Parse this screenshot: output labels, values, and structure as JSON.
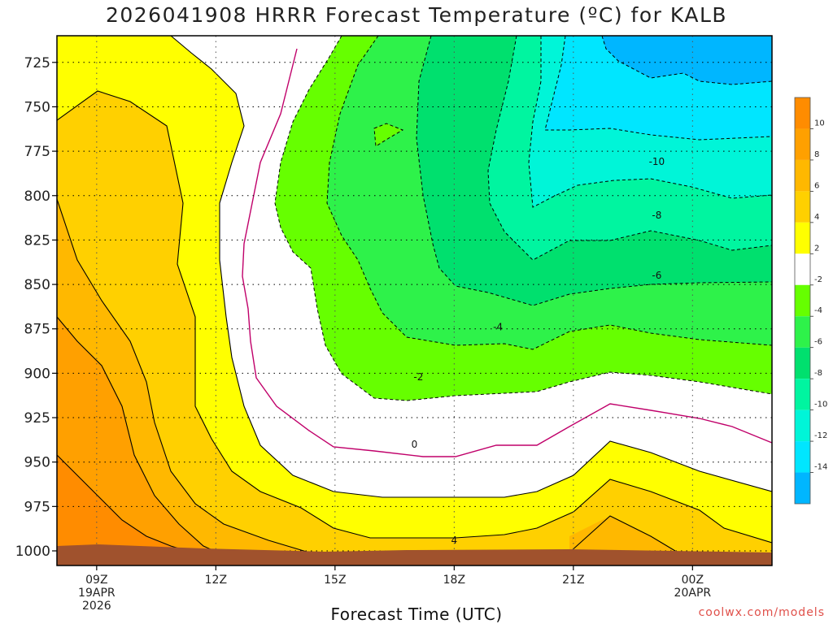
{
  "chart_data": {
    "type": "heatmap",
    "title": "2026041908 HRRR Forecast Temperature (ºC) for KALB",
    "xlabel": "Forecast Time (UTC)",
    "ylabel": "",
    "y_ticks": [
      725,
      750,
      775,
      800,
      825,
      850,
      875,
      900,
      925,
      950,
      975,
      1000
    ],
    "ylim": [
      1000,
      710
    ],
    "x_ticks": [
      {
        "hour": 9,
        "label": "09Z",
        "sub": [
          "19APR",
          "2026"
        ]
      },
      {
        "hour": 12,
        "label": "12Z",
        "sub": []
      },
      {
        "hour": 15,
        "label": "15Z",
        "sub": []
      },
      {
        "hour": 18,
        "label": "18Z",
        "sub": []
      },
      {
        "hour": 21,
        "label": "21Z",
        "sub": []
      },
      {
        "hour": 24,
        "label": "00Z",
        "sub": [
          "20APR"
        ]
      }
    ],
    "xlim": [
      8,
      26
    ],
    "grid": true,
    "colorbar": {
      "levels": [
        10,
        8,
        6,
        4,
        2,
        -2,
        -4,
        -6,
        -8,
        -10,
        -12,
        -14
      ],
      "colors": [
        "#ff8c00",
        "#ffa000",
        "#ffb800",
        "#ffd000",
        "#ffff00",
        "#ffffff",
        "#66ff00",
        "#2ef24a",
        "#00e06e",
        "#00f5a0",
        "#00f5d8",
        "#00e6ff",
        "#00b6ff"
      ]
    },
    "contour_labels": [
      {
        "text": "-10",
        "hour": 23.1,
        "pressure": 781
      },
      {
        "text": "-8",
        "hour": 23.1,
        "pressure": 811
      },
      {
        "text": "-6",
        "hour": 23.1,
        "pressure": 845
      },
      {
        "text": "-4",
        "hour": 19.1,
        "pressure": 874
      },
      {
        "text": "-2",
        "hour": 17.1,
        "pressure": 902
      },
      {
        "text": "0",
        "hour": 17.0,
        "pressure": 940
      },
      {
        "text": "4",
        "hour": 18.0,
        "pressure": 994
      }
    ]
  },
  "credit": "coolwx.com/models"
}
